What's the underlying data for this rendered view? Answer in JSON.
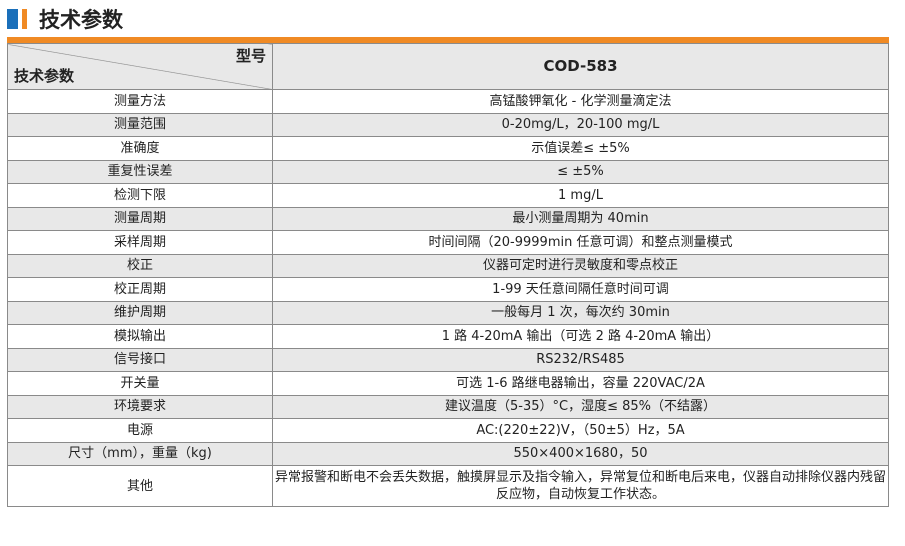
{
  "title": "技术参数",
  "header": {
    "col_label": "型号",
    "row_label": "技术参数",
    "model": "COD-583"
  },
  "rows": [
    {
      "k": "测量方法",
      "v": "高锰酸钾氧化 - 化学测量滴定法"
    },
    {
      "k": "测量范围",
      "v": "0-20mg/L，20-100 mg/L"
    },
    {
      "k": "准确度",
      "v": "示值误差≤ ±5%"
    },
    {
      "k": "重复性误差",
      "v": "≤ ±5%"
    },
    {
      "k": "检测下限",
      "v": "1 mg/L"
    },
    {
      "k": "测量周期",
      "v": "最小测量周期为 40min"
    },
    {
      "k": "采样周期",
      "v": "时间间隔（20-9999min 任意可调）和整点测量模式"
    },
    {
      "k": "校正",
      "v": "仪器可定时进行灵敏度和零点校正"
    },
    {
      "k": "校正周期",
      "v": "1-99 天任意间隔任意时间可调"
    },
    {
      "k": "维护周期",
      "v": "一般每月 1 次，每次约 30min"
    },
    {
      "k": "模拟输出",
      "v": "1 路 4-20mA 输出（可选 2 路 4-20mA 输出）"
    },
    {
      "k": "信号接口",
      "v": "RS232/RS485"
    },
    {
      "k": "开关量",
      "v": "可选 1-6 路继电器输出，容量 220VAC/2A"
    },
    {
      "k": "环境要求",
      "v": "建议温度（5-35）°C，湿度≤ 85%（不结露）"
    },
    {
      "k": "电源",
      "v": "AC:(220±22)V，（50±5）Hz，5A"
    },
    {
      "k": "尺寸（mm），重量（kg)",
      "v": "550×400×1680，50"
    },
    {
      "k": "其他",
      "v": "异常报警和断电不会丢失数据，触摸屏显示及指令输入，异常复位和断电后来电，仪器自动排除仪器内残留反应物，自动恢复工作状态。"
    }
  ]
}
